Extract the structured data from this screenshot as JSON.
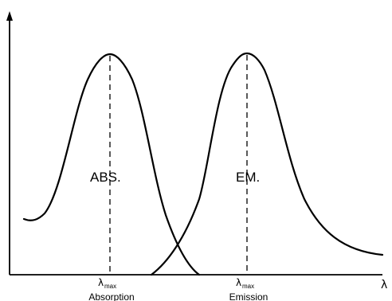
{
  "labels": {
    "absorption_band": "ABS.",
    "emission_band": "EM."
  },
  "ticks": {
    "absorption": {
      "symbol": "λ",
      "subscript": "max",
      "caption": "Absorption"
    },
    "emission": {
      "symbol": "λ",
      "subscript": "max",
      "caption": "Emission"
    }
  },
  "x_axis": {
    "label": "λ"
  },
  "colors": {
    "line": "#000000",
    "background": "#ffffff"
  }
}
